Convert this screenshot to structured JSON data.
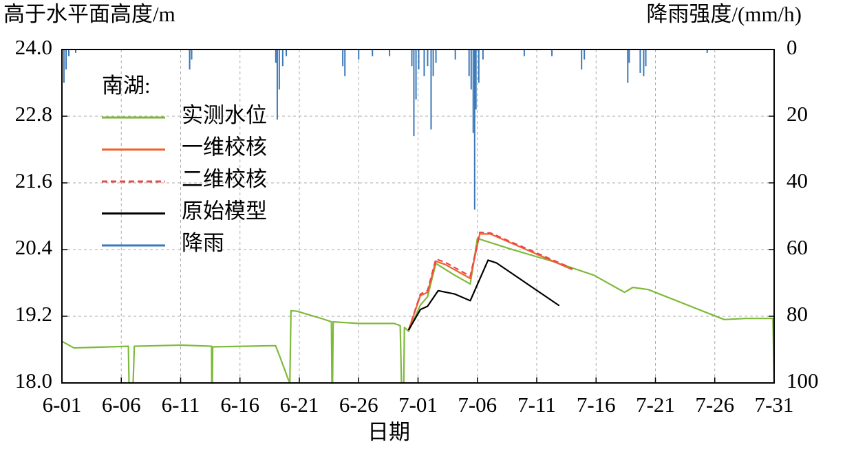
{
  "chart_data": {
    "type": "line",
    "y_label": "高于水平面高度/m",
    "y2_label": "降雨强度/(mm/h)",
    "x_label": "日期",
    "legend_title": "南湖:",
    "legend": "upper-left",
    "grid": true,
    "xlim": [
      0,
      60
    ],
    "xticks": [
      {
        "value": 0,
        "label": "6-01"
      },
      {
        "value": 5,
        "label": "6-06"
      },
      {
        "value": 10,
        "label": "6-11"
      },
      {
        "value": 15,
        "label": "6-16"
      },
      {
        "value": 20,
        "label": "6-21"
      },
      {
        "value": 25,
        "label": "6-26"
      },
      {
        "value": 30,
        "label": "7-01"
      },
      {
        "value": 35,
        "label": "7-06"
      },
      {
        "value": 40,
        "label": "7-11"
      },
      {
        "value": 45,
        "label": "7-16"
      },
      {
        "value": 50,
        "label": "7-21"
      },
      {
        "value": 55,
        "label": "7-26"
      },
      {
        "value": 60,
        "label": "7-31"
      }
    ],
    "ylim": [
      18,
      24
    ],
    "yticks": [
      {
        "value": 18,
        "label": "18.0"
      },
      19.2,
      20.4,
      21.6,
      22.8,
      {
        "value": 24,
        "label": "24.0"
      }
    ],
    "y2lim": [
      0,
      100
    ],
    "y2_reversed": true,
    "y2ticks": [
      0,
      20,
      40,
      60,
      80,
      100
    ],
    "series": [
      {
        "name": "实测水位",
        "color": "#7dba3a",
        "kind": "line",
        "dash": "none",
        "x": [
          0,
          1,
          5.6,
          5.65,
          6.0,
          6.1,
          10,
          12.6,
          12.62,
          12.68,
          12.7,
          18,
          18.4,
          19.0,
          19.2,
          19.3,
          19.8,
          22,
          22.7,
          22.75,
          22.8,
          22.85,
          25,
          28,
          28.5,
          28.6,
          28.8,
          28.85,
          29.2,
          30.2,
          30.8,
          31.5,
          33,
          34.4,
          35.0,
          37.8,
          41.3,
          44.8,
          47.4,
          48.1,
          49.4,
          55.8,
          57.6,
          59.9,
          60
        ],
        "values": [
          18.75,
          18.63,
          18.66,
          18.0,
          18.0,
          18.66,
          18.68,
          18.66,
          18.0,
          18.0,
          18.65,
          18.67,
          18.45,
          18.1,
          18.0,
          19.3,
          19.29,
          19.15,
          19.1,
          18.0,
          18.0,
          19.1,
          19.07,
          19.07,
          19.03,
          18.0,
          18.0,
          19.0,
          18.93,
          19.4,
          19.55,
          20.15,
          19.95,
          19.78,
          20.6,
          20.41,
          20.19,
          19.94,
          19.63,
          19.72,
          19.68,
          19.14,
          19.16,
          19.16,
          18.0
        ]
      },
      {
        "name": "一维校核",
        "color": "#f0602a",
        "kind": "line",
        "dash": "none",
        "x": [
          29.2,
          30.2,
          30.8,
          31.5,
          32.3,
          34.4,
          35.2,
          36.1,
          43.0
        ],
        "values": [
          18.95,
          19.57,
          19.63,
          20.19,
          20.13,
          19.88,
          20.68,
          20.68,
          20.04
        ]
      },
      {
        "name": "二维校核",
        "color": "#e8484a",
        "kind": "line",
        "dash": "8,5",
        "x": [
          29.2,
          30.2,
          30.8,
          31.5,
          32.3,
          34.4,
          35.2,
          36.1,
          43.0
        ],
        "values": [
          18.95,
          19.6,
          19.66,
          20.23,
          20.17,
          19.92,
          20.71,
          20.7,
          20.06
        ]
      },
      {
        "name": "原始模型",
        "color": "#000000",
        "kind": "line",
        "dash": "none",
        "x": [
          29.2,
          30.2,
          30.8,
          31.7,
          33.1,
          34.4,
          35.9,
          36.6,
          41.9
        ],
        "values": [
          18.95,
          19.32,
          19.38,
          19.66,
          19.6,
          19.48,
          20.21,
          20.16,
          19.39
        ]
      },
      {
        "name": "降雨",
        "color": "#3a78b8",
        "kind": "bar",
        "axis": "y2",
        "x": [
          0.17,
          0.35,
          0.58,
          1.16,
          10.76,
          10.93,
          18.02,
          18.14,
          18.31,
          18.6,
          18.9,
          23.66,
          23.84,
          25.0,
          26.16,
          27.6,
          29.48,
          29.65,
          29.83,
          30.06,
          30.52,
          30.81,
          31.1,
          31.28,
          31.51,
          33.14,
          34.3,
          34.48,
          34.65,
          34.77,
          34.88,
          35.12,
          35.47,
          38.95,
          41.28,
          43.78,
          44.01,
          47.67,
          47.79,
          48.72,
          49.01,
          49.19,
          54.36
        ],
        "values": [
          10,
          6,
          2,
          1,
          6,
          3,
          4,
          21,
          12,
          5,
          2,
          5,
          8,
          3,
          2,
          2,
          5,
          26,
          15,
          6,
          8,
          5,
          24,
          8,
          4,
          3,
          8,
          12,
          25,
          48,
          18,
          10,
          3,
          2,
          2,
          6,
          3,
          10,
          4,
          7,
          8,
          5,
          1
        ]
      }
    ]
  }
}
